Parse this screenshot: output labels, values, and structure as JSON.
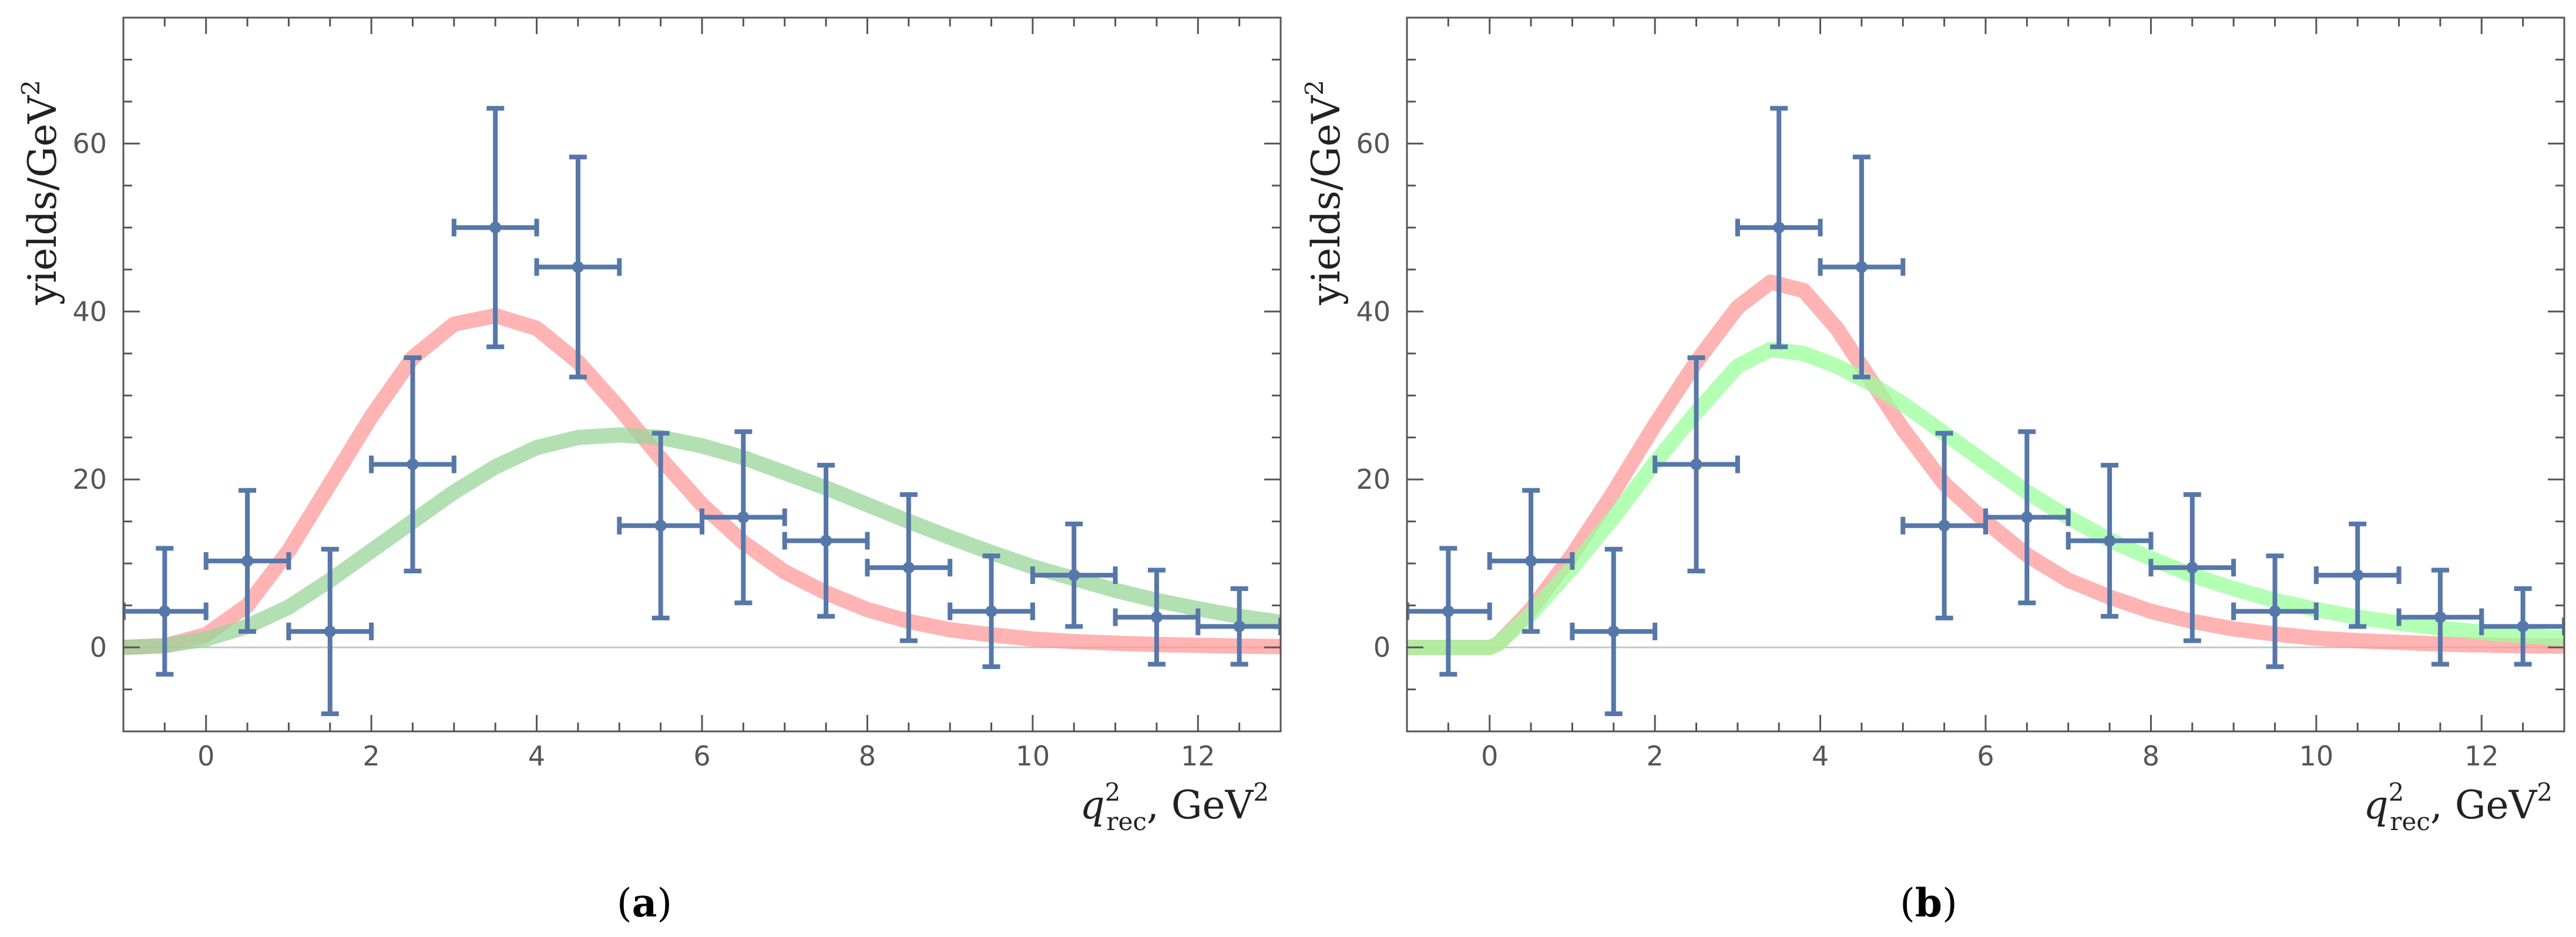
{
  "chart_data": [
    {
      "type": "scatter",
      "panel_label_open": "(",
      "panel_label_letter": "a",
      "panel_label_close": ")",
      "xlabel_var": "q",
      "xlabel_sup": "2",
      "xlabel_sub": "rec",
      "xlabel_unit": ", GeV",
      "xlabel_unit_sup": "2",
      "ylabel_text": "yields/GeV",
      "ylabel_sup": "2",
      "xlim": [
        -1,
        13
      ],
      "ylim": [
        -10,
        75
      ],
      "xticks": [
        0,
        2,
        4,
        6,
        8,
        10,
        12
      ],
      "yticks": [
        0,
        20,
        40,
        60
      ],
      "xtick_labels": [
        "0",
        "2",
        "4",
        "6",
        "8",
        "10",
        "12"
      ],
      "ytick_labels": [
        "0",
        "20",
        "40",
        "60"
      ],
      "baseline": 0,
      "data_points": {
        "color": "#5577aa",
        "x": [
          -0.5,
          0.5,
          1.5,
          2.5,
          3.5,
          4.5,
          5.5,
          6.5,
          7.5,
          8.5,
          9.5,
          10.5,
          11.5,
          12.5
        ],
        "y": [
          4.3,
          10.3,
          1.9,
          21.8,
          50.0,
          45.3,
          14.5,
          15.5,
          12.7,
          9.5,
          4.3,
          8.6,
          3.6,
          2.5
        ],
        "xerr": 0.5,
        "yerr": [
          7.5,
          8.4,
          9.8,
          12.7,
          14.2,
          13.1,
          11.0,
          10.2,
          9.0,
          8.7,
          6.6,
          6.1,
          5.6,
          4.5
        ]
      },
      "curves": [
        {
          "name": "red-curve",
          "color": "#ff9999",
          "x": [
            -1,
            -0.5,
            0,
            0.5,
            1,
            1.5,
            2,
            2.5,
            3,
            3.5,
            4,
            4.5,
            5,
            5.5,
            6,
            6.5,
            7,
            7.5,
            8,
            8.5,
            9,
            9.5,
            10,
            10.5,
            11,
            11.5,
            12,
            12.5,
            13
          ],
          "y": [
            0,
            0.2,
            1.5,
            5,
            11.5,
            19.5,
            27.5,
            34.5,
            38.5,
            39.5,
            38,
            34,
            28.5,
            22.5,
            17,
            12.5,
            9,
            6.5,
            4.5,
            3.1,
            2.1,
            1.5,
            1.0,
            0.7,
            0.5,
            0.35,
            0.25,
            0.15,
            0.1
          ]
        },
        {
          "name": "green-curve",
          "color": "#99d699",
          "x": [
            -1,
            -0.5,
            0,
            0.5,
            1,
            1.5,
            2,
            2.5,
            3,
            3.5,
            4,
            4.5,
            5,
            5.5,
            6,
            6.5,
            7,
            7.5,
            8,
            8.5,
            9,
            9.5,
            10,
            10.5,
            11,
            11.5,
            12,
            12.5,
            13
          ],
          "y": [
            0,
            0.2,
            1.0,
            2.5,
            4.8,
            8.0,
            11.5,
            15.0,
            18.5,
            21.5,
            23.8,
            25.0,
            25.3,
            25.0,
            24.0,
            22.6,
            20.8,
            19.0,
            17.0,
            15.0,
            13.1,
            11.3,
            9.6,
            8.2,
            6.8,
            5.6,
            4.6,
            3.7,
            3.0
          ]
        }
      ]
    },
    {
      "type": "scatter",
      "panel_label_open": "(",
      "panel_label_letter": "b",
      "panel_label_close": ")",
      "xlabel_var": "q",
      "xlabel_sup": "2",
      "xlabel_sub": "rec",
      "xlabel_unit": ", GeV",
      "xlabel_unit_sup": "2",
      "ylabel_text": "yields/GeV",
      "ylabel_sup": "2",
      "xlim": [
        -1,
        13
      ],
      "ylim": [
        -10,
        75
      ],
      "xticks": [
        0,
        2,
        4,
        6,
        8,
        10,
        12
      ],
      "yticks": [
        0,
        20,
        40,
        60
      ],
      "xtick_labels": [
        "0",
        "2",
        "4",
        "6",
        "8",
        "10",
        "12"
      ],
      "ytick_labels": [
        "0",
        "20",
        "40",
        "60"
      ],
      "baseline": 0,
      "data_points": {
        "color": "#5577aa",
        "x": [
          -0.5,
          0.5,
          1.5,
          2.5,
          3.5,
          4.5,
          5.5,
          6.5,
          7.5,
          8.5,
          9.5,
          10.5,
          11.5,
          12.5
        ],
        "y": [
          4.3,
          10.3,
          1.9,
          21.8,
          50.0,
          45.3,
          14.5,
          15.5,
          12.7,
          9.5,
          4.3,
          8.6,
          3.6,
          2.5
        ],
        "xerr": 0.5,
        "yerr": [
          7.5,
          8.4,
          9.8,
          12.7,
          14.2,
          13.1,
          11.0,
          10.2,
          9.0,
          8.7,
          6.6,
          6.1,
          5.6,
          4.5
        ]
      },
      "curves": [
        {
          "name": "red-curve",
          "color": "#ff9999",
          "x": [
            -1,
            0,
            0.1,
            0.5,
            1,
            1.5,
            2,
            2.5,
            3,
            3.4,
            3.8,
            4.2,
            4.6,
            5,
            5.5,
            6,
            6.5,
            7,
            7.5,
            8,
            8.5,
            9,
            9.5,
            10,
            10.5,
            11,
            11.5,
            12,
            12.5,
            13
          ],
          "y": [
            0,
            0,
            0.4,
            4.5,
            11,
            18.5,
            26.5,
            34,
            40.5,
            43.5,
            42.5,
            38,
            32,
            26,
            19.5,
            15,
            11,
            8,
            6,
            4.3,
            3.1,
            2.2,
            1.6,
            1.1,
            0.8,
            0.6,
            0.4,
            0.3,
            0.2,
            0.15
          ]
        },
        {
          "name": "green-curve",
          "color": "#99ff99",
          "x": [
            -1,
            0,
            0.1,
            0.5,
            1,
            1.5,
            2,
            2.5,
            3,
            3.4,
            3.8,
            4.2,
            4.6,
            5,
            5.5,
            6,
            6.5,
            7,
            7.5,
            8,
            8.5,
            9,
            9.5,
            10,
            10.5,
            11,
            11.5,
            12,
            12.5,
            13
          ],
          "y": [
            0,
            0,
            0.4,
            4.0,
            9.5,
            15.5,
            22,
            28,
            33.5,
            35.5,
            35,
            33.5,
            31.5,
            29,
            25.5,
            22,
            18.5,
            15.5,
            12.8,
            10.6,
            8.6,
            7.0,
            5.6,
            4.5,
            3.6,
            2.9,
            2.3,
            1.8,
            1.4,
            1.1
          ]
        }
      ]
    }
  ]
}
